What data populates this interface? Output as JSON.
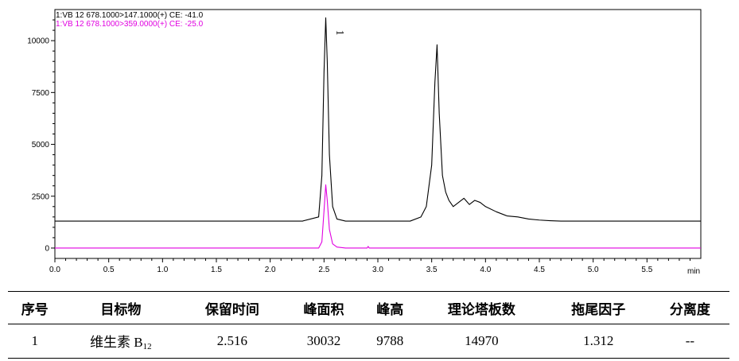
{
  "chart_data": {
    "type": "line",
    "xlabel": "min",
    "xlim": [
      0.0,
      6.0
    ],
    "ylim": [
      -500,
      11500
    ],
    "x_ticks": [
      "0.0",
      "0.5",
      "1.0",
      "1.5",
      "2.0",
      "2.5",
      "3.0",
      "3.5",
      "4.0",
      "4.5",
      "5.0",
      "5.5"
    ],
    "y_ticks": [
      "0",
      "2500",
      "5000",
      "7500",
      "10000"
    ],
    "grid": false,
    "legend_position": "top-left",
    "series": [
      {
        "name": "1:VB 12 678.1000>147.1000(+) CE: -41.0",
        "color": "#000000",
        "x": [
          0.0,
          2.3,
          2.45,
          2.48,
          2.5,
          2.516,
          2.53,
          2.55,
          2.58,
          2.62,
          2.7,
          3.3,
          3.4,
          3.45,
          3.5,
          3.53,
          3.55,
          3.57,
          3.6,
          3.63,
          3.66,
          3.7,
          3.75,
          3.8,
          3.85,
          3.9,
          3.95,
          4.0,
          4.1,
          4.2,
          4.3,
          4.4,
          4.5,
          4.6,
          4.7,
          4.8,
          6.0
        ],
        "y": [
          1300,
          1300,
          1500,
          3500,
          8500,
          11100,
          9000,
          4500,
          2000,
          1400,
          1300,
          1300,
          1500,
          2000,
          4000,
          8000,
          9800,
          6500,
          3500,
          2700,
          2300,
          2000,
          2200,
          2400,
          2100,
          2300,
          2200,
          2000,
          1750,
          1550,
          1500,
          1400,
          1350,
          1320,
          1300,
          1300,
          1300
        ]
      },
      {
        "name": "1:VB 12 678.1000>359.0000(+) CE: -25.0",
        "color": "#e000e0",
        "x": [
          0.0,
          2.45,
          2.48,
          2.5,
          2.516,
          2.53,
          2.55,
          2.58,
          2.62,
          2.7,
          2.9,
          2.91,
          2.92,
          6.0
        ],
        "y": [
          0,
          0,
          300,
          1800,
          3050,
          2300,
          900,
          200,
          50,
          0,
          0,
          80,
          0,
          0
        ]
      }
    ],
    "annotations": [
      {
        "text": "1",
        "x": 2.6,
        "y": 10400
      }
    ]
  },
  "table": {
    "headers": [
      "序号",
      "目标物",
      "保留时间",
      "峰面积",
      "峰高",
      "理论塔板数",
      "拖尾因子",
      "分离度"
    ],
    "rows": [
      {
        "index": "1",
        "target": "维生素 B",
        "target_sub": "12",
        "rt": "2.516",
        "area": "30032",
        "height": "9788",
        "plates": "14970",
        "tailing": "1.312",
        "resolution": "--"
      }
    ]
  }
}
